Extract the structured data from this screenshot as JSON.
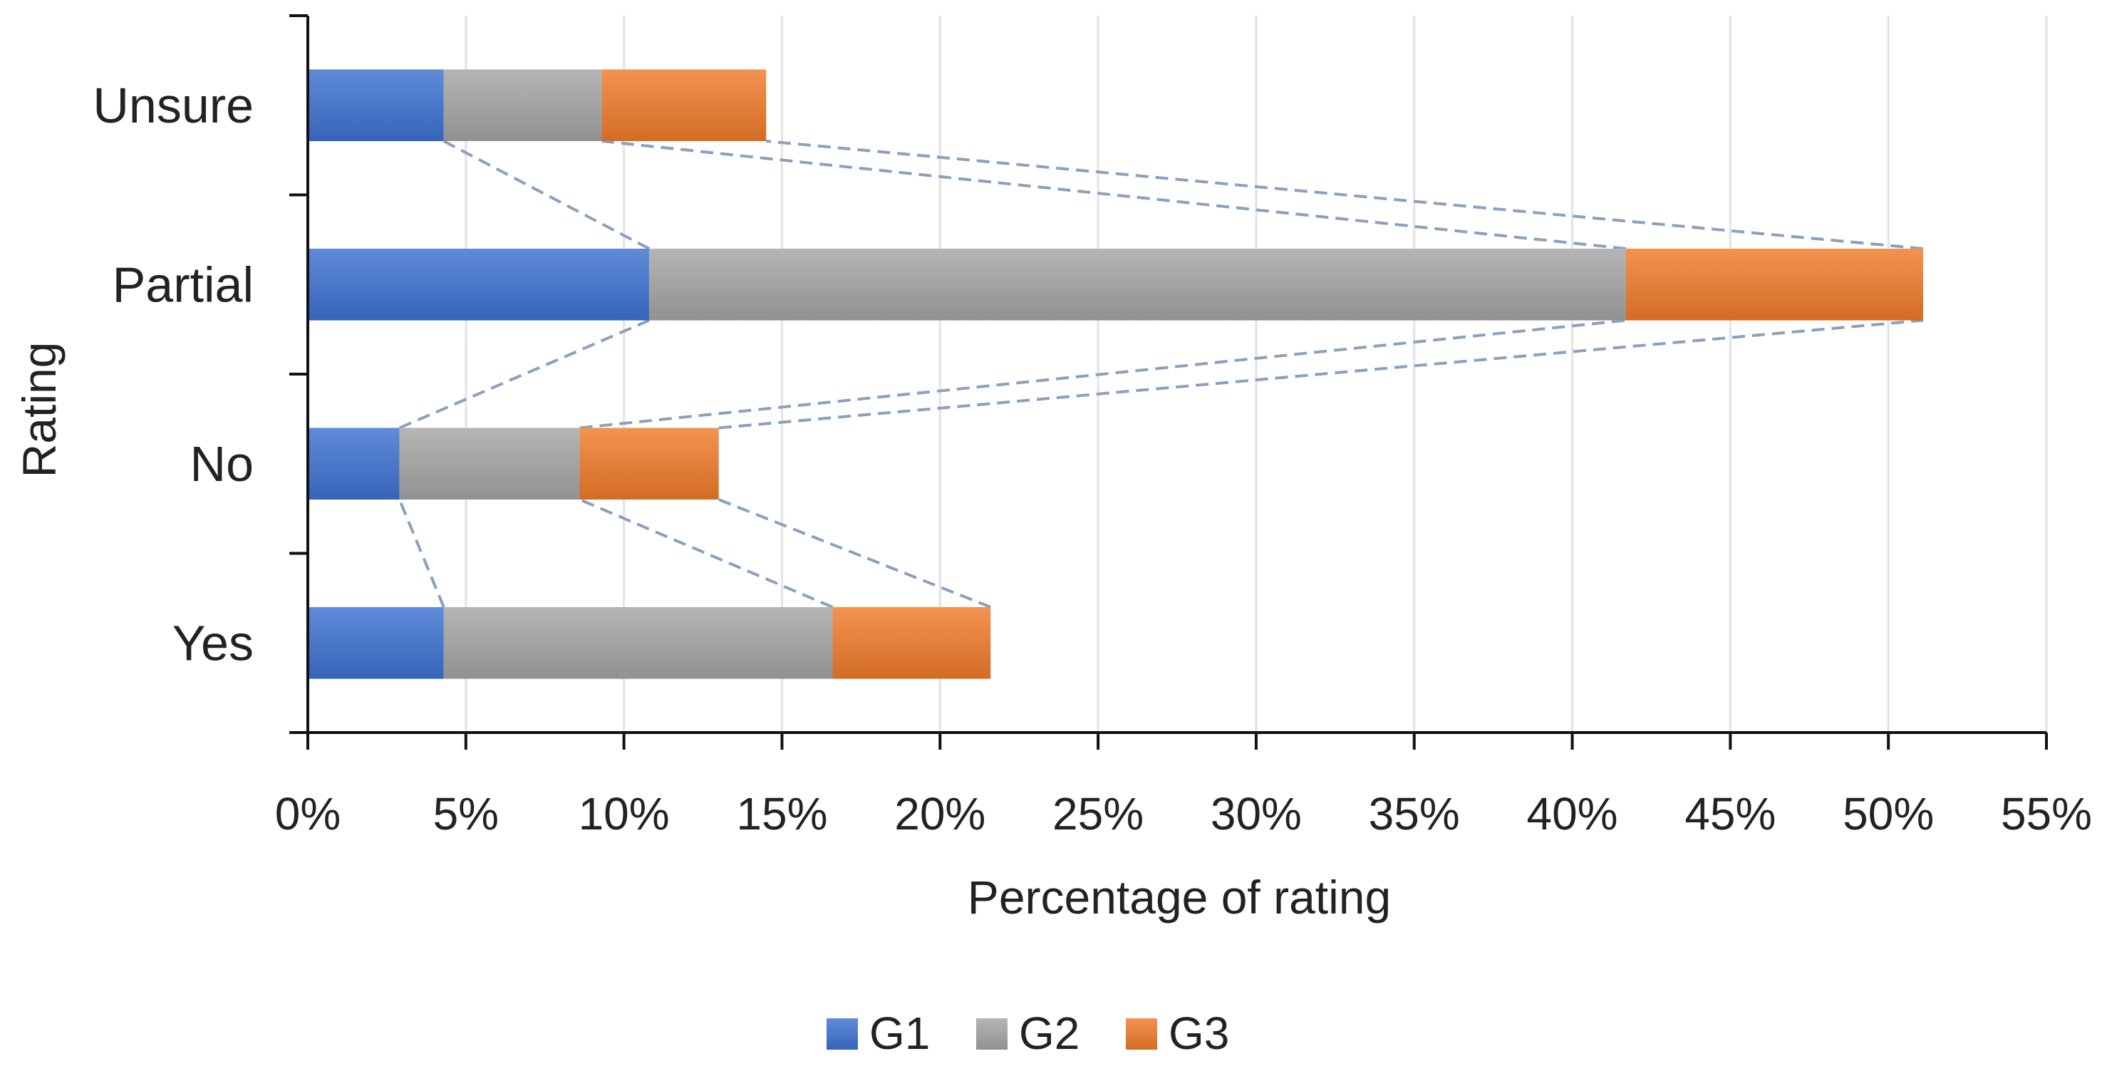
{
  "chart_data": {
    "type": "bar",
    "orientation": "horizontal",
    "stacked": true,
    "title": "",
    "xlabel": "Percentage of rating",
    "ylabel": "Rating",
    "categories": [
      "Yes",
      "No",
      "Partial",
      "Unsure"
    ],
    "series": [
      {
        "name": "G1",
        "color": "#3d72d1",
        "values": [
          4.3,
          2.9,
          10.8,
          4.3
        ]
      },
      {
        "name": "G2",
        "color": "#a5a5a5",
        "values": [
          12.3,
          5.7,
          30.9,
          5.0
        ]
      },
      {
        "name": "G3",
        "color": "#f07b2a",
        "values": [
          5.0,
          4.4,
          9.4,
          5.2
        ]
      }
    ],
    "xlim": [
      0,
      55
    ],
    "xticks": [
      0,
      5,
      10,
      15,
      20,
      25,
      30,
      35,
      40,
      45,
      50,
      55
    ],
    "xtick_labels": [
      "0%",
      "5%",
      "10%",
      "15%",
      "20%",
      "25%",
      "30%",
      "35%",
      "40%",
      "45%",
      "50%",
      "55%"
    ],
    "grid": "vertical",
    "series_lines": true,
    "legend_position": "bottom"
  }
}
